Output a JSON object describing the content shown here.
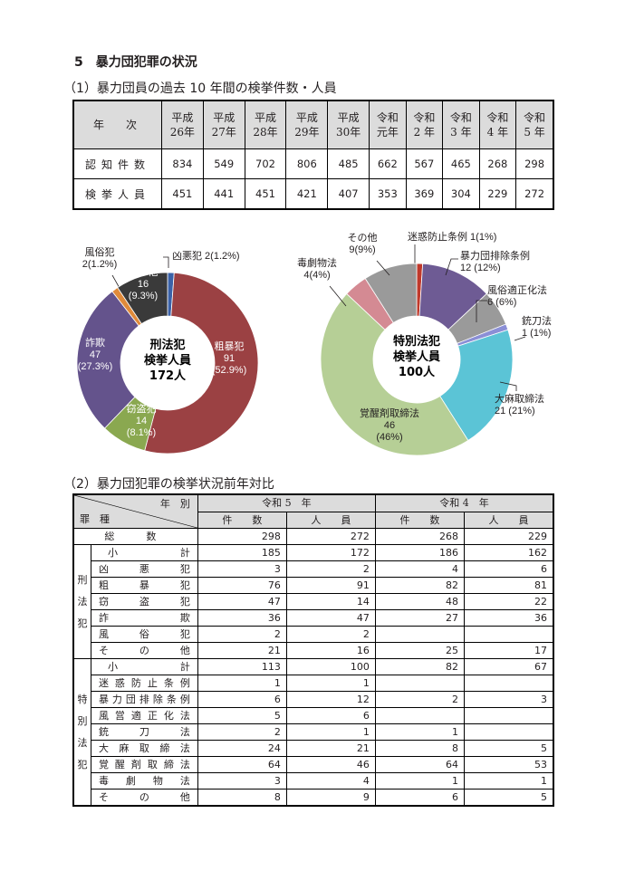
{
  "heading": "5　暴力団犯罪の状況",
  "section1_title": "（1）暴力団員の過去 10 年間の検挙件数・人員",
  "section2_title": "（2）暴力団犯罪の検挙状況前年対比",
  "table1": {
    "corner": "年　次",
    "years": [
      [
        "平成",
        "26年"
      ],
      [
        "平成",
        "27年"
      ],
      [
        "平成",
        "28年"
      ],
      [
        "平成",
        "29年"
      ],
      [
        "平成",
        "30年"
      ],
      [
        "令和",
        "元年"
      ],
      [
        "令和",
        "2 年"
      ],
      [
        "令和",
        "3 年"
      ],
      [
        "令和",
        "4 年"
      ],
      [
        "令和",
        "5 年"
      ]
    ],
    "rows": [
      {
        "label": "認知件数",
        "values": [
          "834",
          "549",
          "702",
          "806",
          "485",
          "662",
          "567",
          "465",
          "268",
          "298"
        ]
      },
      {
        "label": "検挙人員",
        "values": [
          "451",
          "441",
          "451",
          "421",
          "407",
          "353",
          "369",
          "304",
          "229",
          "272"
        ]
      }
    ]
  },
  "donut1": {
    "center": [
      "刑法犯",
      "検挙人員",
      "172人"
    ],
    "slices": [
      {
        "name": "凶悪犯",
        "value": 2,
        "label": "凶悪犯 2(1.2%)",
        "color": "#3b62a8"
      },
      {
        "name": "粗暴犯",
        "value": 91,
        "label": "粗暴犯\n91\n(52.9%)",
        "color": "#9b4143"
      },
      {
        "name": "窃盗犯",
        "value": 14,
        "label": "窃盗犯\n14\n(8.1%)",
        "color": "#8aa850"
      },
      {
        "name": "詐欺",
        "value": 47,
        "label": "詐欺\n47\n(27.3%)",
        "color": "#64538c"
      },
      {
        "name": "風俗犯",
        "value": 2,
        "label": "風俗犯\n2(1.2%)",
        "color": "#e08a3a"
      },
      {
        "name": "その他",
        "value": 16,
        "label": "その他\n16\n(9.3%)",
        "color": "#3a3a3a"
      }
    ]
  },
  "donut2": {
    "center": [
      "特別法犯",
      "検挙人員",
      "100人"
    ],
    "slices": [
      {
        "name": "迷惑防止条例",
        "value": 1,
        "label": "迷惑防止条例 1(1%)",
        "color": "#c0392b"
      },
      {
        "name": "暴力団排除条例",
        "value": 12,
        "label": "暴力団排除条例\n12 (12%)",
        "color": "#6e5b94"
      },
      {
        "name": "風俗適正化法",
        "value": 6,
        "label": "風俗適正化法\n6 (6%)",
        "color": "#9a9a9a"
      },
      {
        "name": "銃刀法",
        "value": 1,
        "label": "銃刀法\n1 (1%)",
        "color": "#8b8fd6"
      },
      {
        "name": "大麻取締法",
        "value": 21,
        "label": "大麻取締法\n21 (21%)",
        "color": "#5bc4d6"
      },
      {
        "name": "覚醒剤取締法",
        "value": 46,
        "label": "覚醒剤取締法\n46\n(46%)",
        "color": "#b6cf96"
      },
      {
        "name": "毒劇物法",
        "value": 4,
        "label": "毒劇物法\n4(4%)",
        "color": "#d48a93"
      },
      {
        "name": "その他",
        "value": 9,
        "label": "その他\n9(9%)",
        "color": "#9a9a9a"
      }
    ]
  },
  "table2": {
    "corner_top": "年　別",
    "corner_bottom": "罪　種",
    "year_r5": "令和 5　年",
    "year_r4": "令和 4　年",
    "col_cases": "件　　数",
    "col_people": "人　　員",
    "total": {
      "label": "総　数",
      "v": [
        "298",
        "272",
        "268",
        "229"
      ]
    },
    "groups": [
      {
        "name": "刑法犯",
        "rows": [
          {
            "label": "小　　計",
            "v": [
              "185",
              "172",
              "186",
              "162"
            ],
            "subtotal": true
          },
          {
            "label": "凶悪犯",
            "v": [
              "3",
              "2",
              "4",
              "6"
            ]
          },
          {
            "label": "粗暴犯",
            "v": [
              "76",
              "91",
              "82",
              "81"
            ]
          },
          {
            "label": "窃盗犯",
            "v": [
              "47",
              "14",
              "48",
              "22"
            ]
          },
          {
            "label": "詐欺",
            "v": [
              "36",
              "47",
              "27",
              "36"
            ]
          },
          {
            "label": "風俗犯",
            "v": [
              "2",
              "2",
              "",
              ""
            ]
          },
          {
            "label": "その他",
            "v": [
              "21",
              "16",
              "25",
              "17"
            ]
          }
        ]
      },
      {
        "name": "特別法犯",
        "rows": [
          {
            "label": "小　　計",
            "v": [
              "113",
              "100",
              "82",
              "67"
            ],
            "subtotal": true
          },
          {
            "label": "迷惑防止条例",
            "v": [
              "1",
              "1",
              "",
              ""
            ]
          },
          {
            "label": "暴力団排除条例",
            "v": [
              "6",
              "12",
              "2",
              "3"
            ]
          },
          {
            "label": "風営適正化法",
            "v": [
              "5",
              "6",
              "",
              ""
            ]
          },
          {
            "label": "銃刀法",
            "v": [
              "2",
              "1",
              "1",
              ""
            ]
          },
          {
            "label": "大麻取締法",
            "v": [
              "24",
              "21",
              "8",
              "5"
            ]
          },
          {
            "label": "覚醒剤取締法",
            "v": [
              "64",
              "46",
              "64",
              "53"
            ]
          },
          {
            "label": "毒劇物法",
            "v": [
              "3",
              "4",
              "1",
              "1"
            ]
          },
          {
            "label": "その他",
            "v": [
              "8",
              "9",
              "6",
              "5"
            ]
          }
        ]
      }
    ]
  }
}
